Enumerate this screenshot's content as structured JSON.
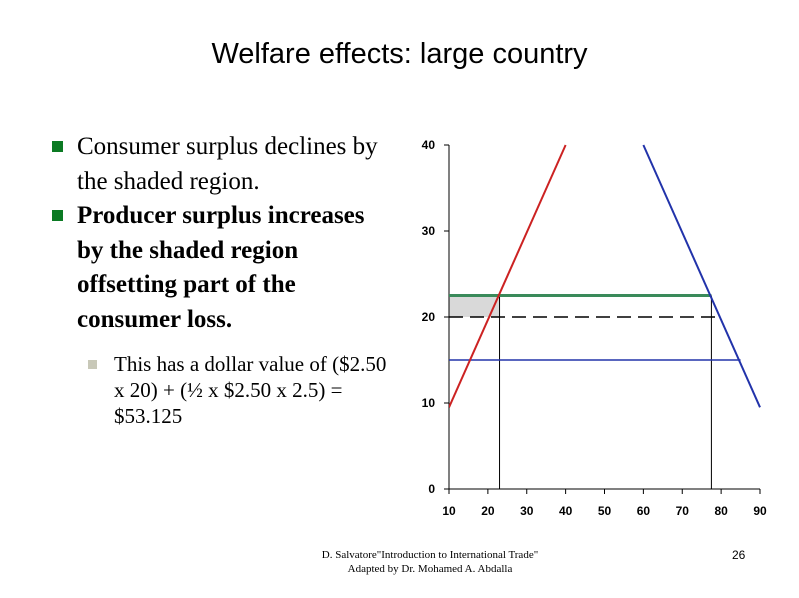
{
  "slide": {
    "title": "Welfare effects: large country",
    "bullets": [
      {
        "text": "Consumer surplus declines by the shaded region.",
        "bold": false
      },
      {
        "text": "Producer surplus increases by the shaded region offsetting part of the consumer loss.",
        "bold": true
      }
    ],
    "sub_bullet": "This has a dollar value of ($2.50 x 20) + (½ x $2.50 x 2.5) = $53.125",
    "footer_line1": "D. Salvatore\"Introduction to International Trade\"",
    "footer_line2": "Adapted by Dr. Mohamed A. Abdalla",
    "page_number": "26"
  },
  "colors": {
    "supply": "#cc2222",
    "demand": "#2233aa",
    "tariff_price": "#3a8a5a",
    "world_price": "#2233aa",
    "shade": "#d9d9d9",
    "bullet": "#0b7a23"
  },
  "chart_data": {
    "type": "line",
    "xlim": [
      10,
      90
    ],
    "ylim": [
      0,
      40
    ],
    "x_ticks": [
      "10",
      "20",
      "30",
      "40",
      "50",
      "60",
      "70",
      "80",
      "90"
    ],
    "y_ticks": [
      "0",
      "10",
      "20",
      "30",
      "40"
    ],
    "series": [
      {
        "points": [
          [
            10,
            9.5
          ],
          [
            40,
            40
          ]
        ]
      },
      {
        "points": [
          [
            60,
            40
          ],
          [
            90,
            9.5
          ]
        ]
      }
    ],
    "horizontal_lines": [
      {
        "y": 22.5,
        "x_from": 10,
        "x_to": 77.5,
        "style": "solid-thick"
      },
      {
        "y": 20,
        "x_from": 10,
        "x_to": 80,
        "style": "dashed"
      },
      {
        "y": 15,
        "x_from": 10,
        "x_to": 85,
        "style": "solid"
      }
    ],
    "vertical_drops": [
      {
        "x": 23,
        "from_y": 0,
        "to_y": 22.5
      },
      {
        "x": 77.5,
        "from_y": 0,
        "to_y": 22.5
      }
    ],
    "shaded_region": {
      "y_from": 20,
      "y_to": 22.5,
      "x_from": 10,
      "x_to": 23
    }
  }
}
